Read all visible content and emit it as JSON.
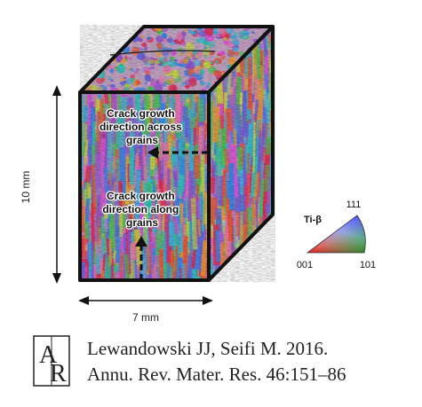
{
  "diagram": {
    "labels": {
      "top_annotation": "Crack growth direction across grains",
      "top_annotation_lines": [
        "Crack growth",
        "direction across",
        "grains"
      ],
      "bottom_annotation": "Crack growth direction along grains",
      "bottom_annotation_lines": [
        "Crack growth",
        "direction along",
        "grains"
      ],
      "height_dimension": "10 mm",
      "width_dimension": "7 mm"
    },
    "legend": {
      "title": "Ti-β",
      "corner_top": "111",
      "corner_left": "001",
      "corner_right": "101"
    },
    "colors": {
      "cube_edge": "#111111",
      "arrow": "#111111",
      "legend_red": "#ff1e1e",
      "legend_green": "#28d23c",
      "legend_blue": "#3c46ff"
    }
  },
  "citation": {
    "logo_letters": "AR",
    "line1": "Lewandowski JJ, Seifi M. 2016.",
    "line2": "Annu. Rev. Mater. Res. 46:151–86"
  }
}
